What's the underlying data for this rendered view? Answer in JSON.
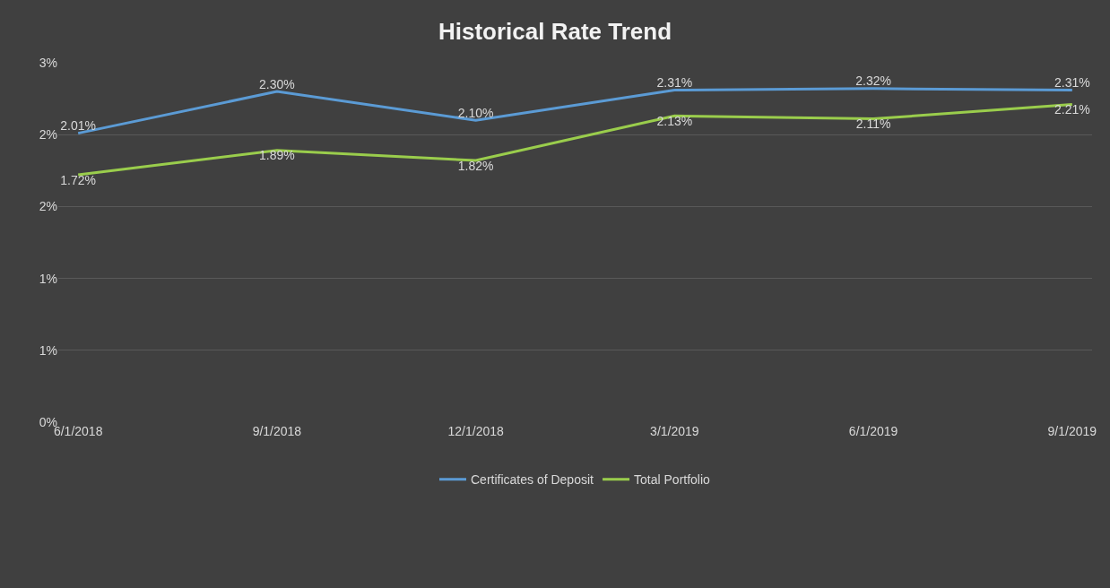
{
  "chart_data": {
    "type": "line",
    "title": "Historical Rate Trend",
    "categories": [
      "6/1/2018",
      "9/1/2018",
      "12/1/2018",
      "3/1/2019",
      "6/1/2019",
      "9/1/2019"
    ],
    "series": [
      {
        "name": "Certificates of Deposit",
        "color": "#5b9bd5",
        "values": [
          2.01,
          2.3,
          2.1,
          2.31,
          2.32,
          2.31
        ],
        "value_labels": [
          "2.01%",
          "2.30%",
          "2.10%",
          "2.31%",
          "2.32%",
          "2.31%"
        ]
      },
      {
        "name": "Total Portfolio",
        "color": "#9acd4c",
        "values": [
          1.72,
          1.89,
          1.82,
          2.13,
          2.11,
          2.21
        ],
        "value_labels": [
          "1.72%",
          "1.89%",
          "1.82%",
          "2.13%",
          "2.11%",
          "2.21%"
        ]
      }
    ],
    "ylim": [
      0,
      2.5
    ],
    "yticks": [
      {
        "value": 0,
        "label": "0%"
      },
      {
        "value": 0.5,
        "label": "1%"
      },
      {
        "value": 1.0,
        "label": "1%"
      },
      {
        "value": 1.5,
        "label": "2%"
      },
      {
        "value": 2.0,
        "label": "2%"
      },
      {
        "value": 2.5,
        "label": "3%"
      }
    ],
    "grid": "y",
    "legend": "bottom",
    "marker": "none",
    "line_style": "solid"
  }
}
